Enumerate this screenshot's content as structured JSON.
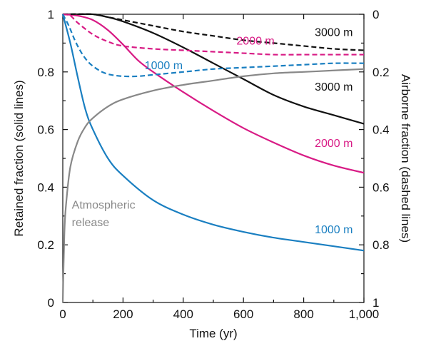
{
  "chart_data": {
    "type": "line",
    "xlabel": "Time (yr)",
    "ylabel": "Retained fraction (solid lines)",
    "y2label": "Airborne fraction (dashed lines)",
    "xlim": [
      0,
      1000
    ],
    "ylim": [
      0,
      1
    ],
    "y2lim": [
      1,
      0
    ],
    "y2_inverted": true,
    "grid": false,
    "x_ticks": [
      0,
      200,
      400,
      600,
      800,
      1000
    ],
    "x_tick_labels": [
      "0",
      "200",
      "400",
      "600",
      "800",
      "1,000"
    ],
    "y_ticks": [
      0,
      0.2,
      0.4,
      0.6,
      0.8,
      1
    ],
    "y_tick_labels": [
      "0",
      "0.2",
      "0.4",
      "0.6",
      "0.8",
      "1"
    ],
    "y2_ticks": [
      0,
      0.2,
      0.4,
      0.6,
      0.8,
      1
    ],
    "y2_tick_labels": [
      "0",
      "0.2",
      "0.4",
      "0.6",
      "0.8",
      "1"
    ],
    "colors": {
      "1000 m": "#1a7fc1",
      "2000 m": "#d81b85",
      "3000 m": "#111111",
      "Atmospheric release": "#888888"
    },
    "series": [
      {
        "name": "3000 m",
        "style": "solid",
        "axis": "left",
        "color": "#111111",
        "x": [
          0,
          50,
          100,
          150,
          200,
          300,
          400,
          500,
          600,
          700,
          800,
          900,
          1000
        ],
        "y": [
          1.0,
          1.0,
          1.0,
          0.99,
          0.975,
          0.935,
          0.885,
          0.83,
          0.775,
          0.72,
          0.68,
          0.65,
          0.62
        ]
      },
      {
        "name": "2000 m",
        "style": "solid",
        "axis": "left",
        "color": "#d81b85",
        "x": [
          0,
          50,
          100,
          150,
          200,
          250,
          300,
          400,
          500,
          600,
          700,
          800,
          900,
          1000
        ],
        "y": [
          1.0,
          0.995,
          0.98,
          0.945,
          0.895,
          0.84,
          0.8,
          0.73,
          0.665,
          0.605,
          0.555,
          0.51,
          0.475,
          0.45
        ]
      },
      {
        "name": "1000 m",
        "style": "solid",
        "axis": "left",
        "color": "#1a7fc1",
        "x": [
          0,
          25,
          50,
          75,
          100,
          150,
          200,
          300,
          400,
          500,
          600,
          700,
          800,
          900,
          1000
        ],
        "y": [
          1.0,
          0.9,
          0.78,
          0.67,
          0.6,
          0.5,
          0.44,
          0.355,
          0.305,
          0.27,
          0.245,
          0.225,
          0.21,
          0.195,
          0.18
        ]
      },
      {
        "name": "Atmospheric release",
        "style": "solid",
        "axis": "left",
        "color": "#888888",
        "x": [
          0,
          5,
          10,
          25,
          50,
          75,
          100,
          150,
          200,
          300,
          400,
          500,
          600,
          700,
          800,
          900,
          1000
        ],
        "y": [
          0.0,
          0.23,
          0.33,
          0.47,
          0.56,
          0.61,
          0.64,
          0.68,
          0.705,
          0.735,
          0.755,
          0.77,
          0.785,
          0.795,
          0.8,
          0.805,
          0.81
        ]
      },
      {
        "name": "3000 m",
        "style": "dashed",
        "axis": "right",
        "color": "#111111",
        "x": [
          0,
          100,
          150,
          200,
          300,
          400,
          500,
          600,
          700,
          800,
          900,
          1000
        ],
        "y": [
          0.0,
          0.0,
          0.01,
          0.02,
          0.04,
          0.06,
          0.075,
          0.09,
          0.1,
          0.11,
          0.12,
          0.125
        ]
      },
      {
        "name": "2000 m",
        "style": "dashed",
        "axis": "right",
        "color": "#d81b85",
        "x": [
          0,
          25,
          50,
          100,
          150,
          200,
          300,
          400,
          500,
          600,
          700,
          800,
          900,
          1000
        ],
        "y": [
          0.0,
          0.005,
          0.03,
          0.07,
          0.095,
          0.11,
          0.12,
          0.125,
          0.13,
          0.135,
          0.14,
          0.14,
          0.14,
          0.14
        ]
      },
      {
        "name": "1000 m",
        "style": "dashed",
        "axis": "right",
        "color": "#1a7fc1",
        "x": [
          0,
          20,
          40,
          60,
          80,
          100,
          130,
          160,
          200,
          250,
          300,
          400,
          500,
          600,
          700,
          800,
          900,
          1000
        ],
        "y": [
          0.0,
          0.04,
          0.09,
          0.13,
          0.16,
          0.18,
          0.2,
          0.21,
          0.215,
          0.215,
          0.21,
          0.2,
          0.19,
          0.185,
          0.18,
          0.175,
          0.17,
          0.17
        ]
      }
    ],
    "annotations": [
      {
        "text": "3000 m",
        "color": "#111111",
        "near": "dashed-3000",
        "x": 900,
        "y2": 0.075
      },
      {
        "text": "2000 m",
        "color": "#d81b85",
        "near": "dashed-2000",
        "x": 640,
        "y2": 0.105
      },
      {
        "text": "1000 m",
        "color": "#1a7fc1",
        "near": "dashed-1000",
        "x": 335,
        "y2": 0.19
      },
      {
        "text": "3000 m",
        "color": "#111111",
        "near": "solid-3000",
        "x": 900,
        "y": 0.735
      },
      {
        "text": "2000 m",
        "color": "#d81b85",
        "near": "solid-2000",
        "x": 900,
        "y": 0.54
      },
      {
        "text": "1000 m",
        "color": "#1a7fc1",
        "near": "solid-1000",
        "x": 900,
        "y": 0.24
      },
      {
        "text": "Atmospheric",
        "color": "#888888",
        "near": "atmospheric",
        "x": 30,
        "y": 0.325
      },
      {
        "text": "release",
        "color": "#888888",
        "near": "atmospheric",
        "x": 30,
        "y": 0.265
      }
    ]
  }
}
